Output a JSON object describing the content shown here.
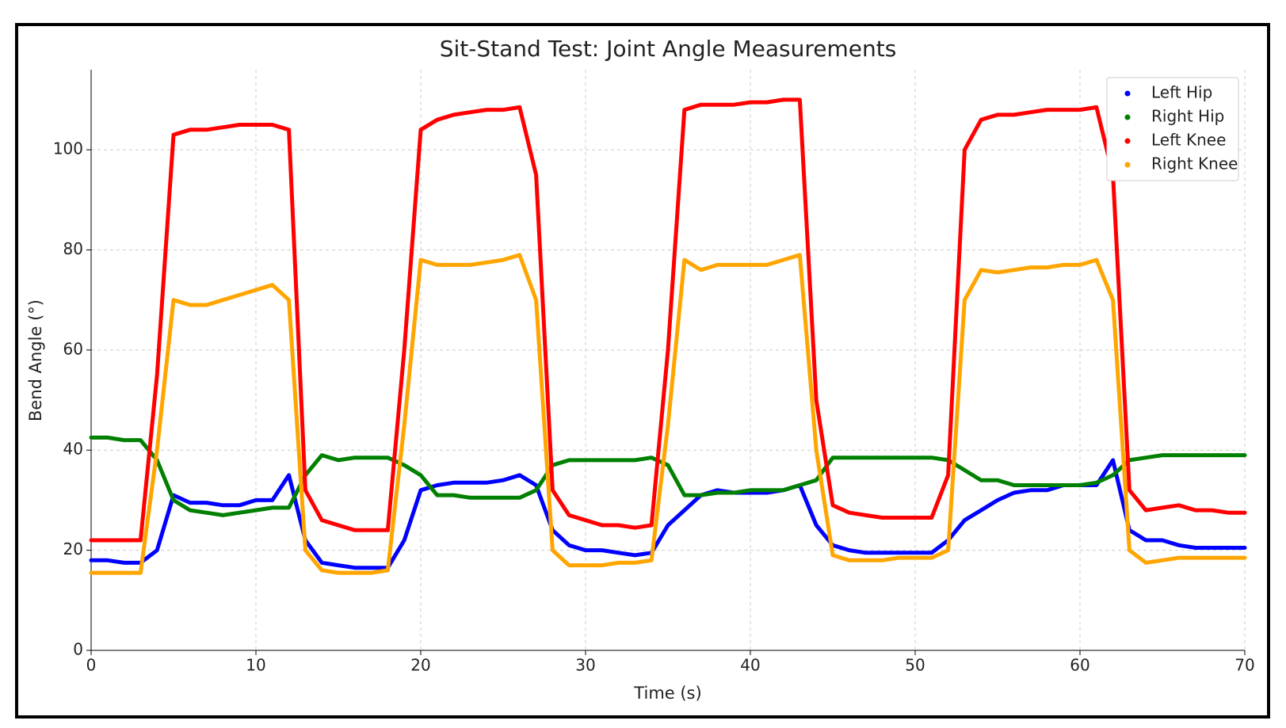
{
  "chart_data": {
    "type": "line",
    "title": "Sit-Stand Test: Joint Angle Measurements",
    "x_label": "Time (s)",
    "y_label": "Bend Angle (°)",
    "x": [
      0,
      1,
      2,
      3,
      4,
      5,
      6,
      7,
      8,
      9,
      10,
      11,
      12,
      13,
      14,
      15,
      16,
      17,
      18,
      19,
      20,
      21,
      22,
      23,
      24,
      25,
      26,
      27,
      28,
      29,
      30,
      31,
      32,
      33,
      34,
      35,
      36,
      37,
      38,
      39,
      40,
      41,
      42,
      43,
      44,
      45,
      46,
      47,
      48,
      49,
      50,
      51,
      52,
      53,
      54,
      55,
      56,
      57,
      58,
      59,
      60,
      61,
      62,
      63,
      64,
      65,
      66,
      67,
      68,
      69,
      70
    ],
    "series": [
      {
        "name": "Left Hip",
        "color": "#0000ff",
        "values": [
          18,
          18,
          17.5,
          17.5,
          20,
          31,
          29.5,
          29.5,
          29,
          29,
          30,
          30,
          35,
          22,
          17.5,
          17,
          16.5,
          16.5,
          16.5,
          22,
          32,
          33,
          33.5,
          33.5,
          33.5,
          34,
          35,
          33,
          24,
          21,
          20,
          20,
          19.5,
          19,
          19.5,
          25,
          28,
          31,
          32,
          31.5,
          31.5,
          31.5,
          32,
          33,
          25,
          21,
          20,
          19.5,
          19.5,
          19.5,
          19.5,
          19.5,
          22,
          26,
          28,
          30,
          31.5,
          32,
          32,
          33,
          33,
          33,
          38,
          24,
          22,
          22,
          21,
          20.5,
          20.5,
          20.5,
          20.5
        ]
      },
      {
        "name": "Right Hip",
        "color": "#008000",
        "values": [
          42.5,
          42.5,
          42,
          42,
          38,
          30,
          28,
          27.5,
          27,
          27.5,
          28,
          28.5,
          28.5,
          35,
          39,
          38,
          38.5,
          38.5,
          38.5,
          37,
          35,
          31,
          31,
          30.5,
          30.5,
          30.5,
          30.5,
          32,
          37,
          38,
          38,
          38,
          38,
          38,
          38.5,
          37,
          31,
          31,
          31.5,
          31.5,
          32,
          32,
          32,
          33,
          34,
          38.5,
          38.5,
          38.5,
          38.5,
          38.5,
          38.5,
          38.5,
          38,
          36,
          34,
          34,
          33,
          33,
          33,
          33,
          33,
          33.5,
          35,
          38,
          38.5,
          39,
          39,
          39,
          39,
          39,
          39
        ]
      },
      {
        "name": "Left Knee",
        "color": "#ff0000",
        "values": [
          22,
          22,
          22,
          22,
          55,
          103,
          104,
          104,
          104.5,
          105,
          105,
          105,
          104,
          32,
          26,
          25,
          24,
          24,
          24,
          60,
          104,
          106,
          107,
          107.5,
          108,
          108,
          108.5,
          95,
          32,
          27,
          26,
          25,
          25,
          24.5,
          25,
          60,
          108,
          109,
          109,
          109,
          109.5,
          109.5,
          110,
          110,
          50,
          29,
          27.5,
          27,
          26.5,
          26.5,
          26.5,
          26.5,
          35,
          100,
          106,
          107,
          107,
          107.5,
          108,
          108,
          108,
          108.5,
          95,
          32,
          28,
          28.5,
          29,
          28,
          28,
          27.5,
          27.5
        ]
      },
      {
        "name": "Right Knee",
        "color": "#ffa500",
        "values": [
          15.5,
          15.5,
          15.5,
          15.5,
          40,
          70,
          69,
          69,
          70,
          71,
          72,
          73,
          70,
          20,
          16,
          15.5,
          15.5,
          15.5,
          16,
          45,
          78,
          77,
          77,
          77,
          77.5,
          78,
          79,
          70,
          20,
          17,
          17,
          17,
          17.5,
          17.5,
          18,
          45,
          78,
          76,
          77,
          77,
          77,
          77,
          78,
          79,
          40,
          19,
          18,
          18,
          18,
          18.5,
          18.5,
          18.5,
          20,
          70,
          76,
          75.5,
          76,
          76.5,
          76.5,
          77,
          77,
          78,
          70,
          20,
          17.5,
          18,
          18.5,
          18.5,
          18.5,
          18.5,
          18.5
        ]
      }
    ],
    "xlim": [
      0,
      70
    ],
    "xticks": [
      0,
      10,
      20,
      30,
      40,
      50,
      60,
      70
    ],
    "ylim": [
      0,
      116
    ],
    "yticks": [
      0,
      20,
      40,
      60,
      80,
      100
    ],
    "grid": true,
    "legend": "upper right"
  }
}
